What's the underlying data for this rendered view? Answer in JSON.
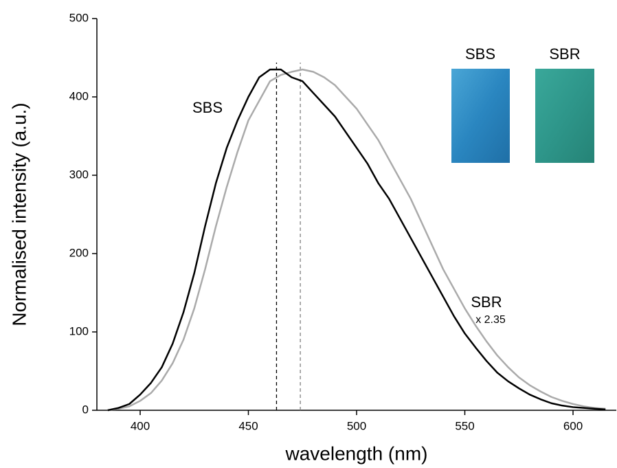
{
  "chart_data": {
    "type": "line",
    "x_label": "wavelength (nm)",
    "y_label": "Normalised intensity (a.u.)",
    "x": [
      385,
      390,
      395,
      400,
      405,
      410,
      415,
      420,
      425,
      430,
      435,
      440,
      445,
      450,
      455,
      460,
      465,
      470,
      475,
      480,
      485,
      490,
      495,
      500,
      505,
      510,
      515,
      520,
      525,
      530,
      535,
      540,
      545,
      550,
      555,
      560,
      565,
      570,
      575,
      580,
      585,
      590,
      595,
      600,
      605,
      610,
      615
    ],
    "series": [
      {
        "name": "SBS",
        "color": "#000000",
        "values": [
          0,
          3,
          8,
          20,
          35,
          55,
          85,
          125,
          175,
          235,
          290,
          335,
          370,
          400,
          425,
          435,
          435,
          425,
          420,
          405,
          390,
          375,
          355,
          335,
          315,
          290,
          270,
          245,
          220,
          195,
          170,
          145,
          120,
          98,
          80,
          63,
          48,
          37,
          28,
          20,
          14,
          9,
          6,
          4,
          3,
          2,
          1
        ]
      },
      {
        "name": "SBR",
        "color": "#aaaaaa",
        "values": [
          0,
          2,
          5,
          12,
          22,
          38,
          60,
          90,
          130,
          180,
          235,
          285,
          330,
          370,
          395,
          420,
          428,
          432,
          435,
          432,
          425,
          415,
          400,
          385,
          365,
          345,
          320,
          295,
          270,
          240,
          210,
          180,
          155,
          130,
          108,
          88,
          70,
          55,
          42,
          32,
          24,
          17,
          12,
          8,
          5,
          3,
          2
        ]
      }
    ],
    "series_note": "x 2.35",
    "reference_lines": [
      {
        "x": 463,
        "color": "#000000"
      },
      {
        "x": 474,
        "color": "#808080"
      }
    ],
    "inset_labels": [
      "SBS",
      "SBR"
    ],
    "xlim": [
      380,
      620
    ],
    "xticks": [
      400,
      450,
      500,
      550,
      600
    ],
    "ylim": [
      0,
      500
    ],
    "yticks": [
      0,
      100,
      200,
      300,
      400,
      500
    ]
  }
}
